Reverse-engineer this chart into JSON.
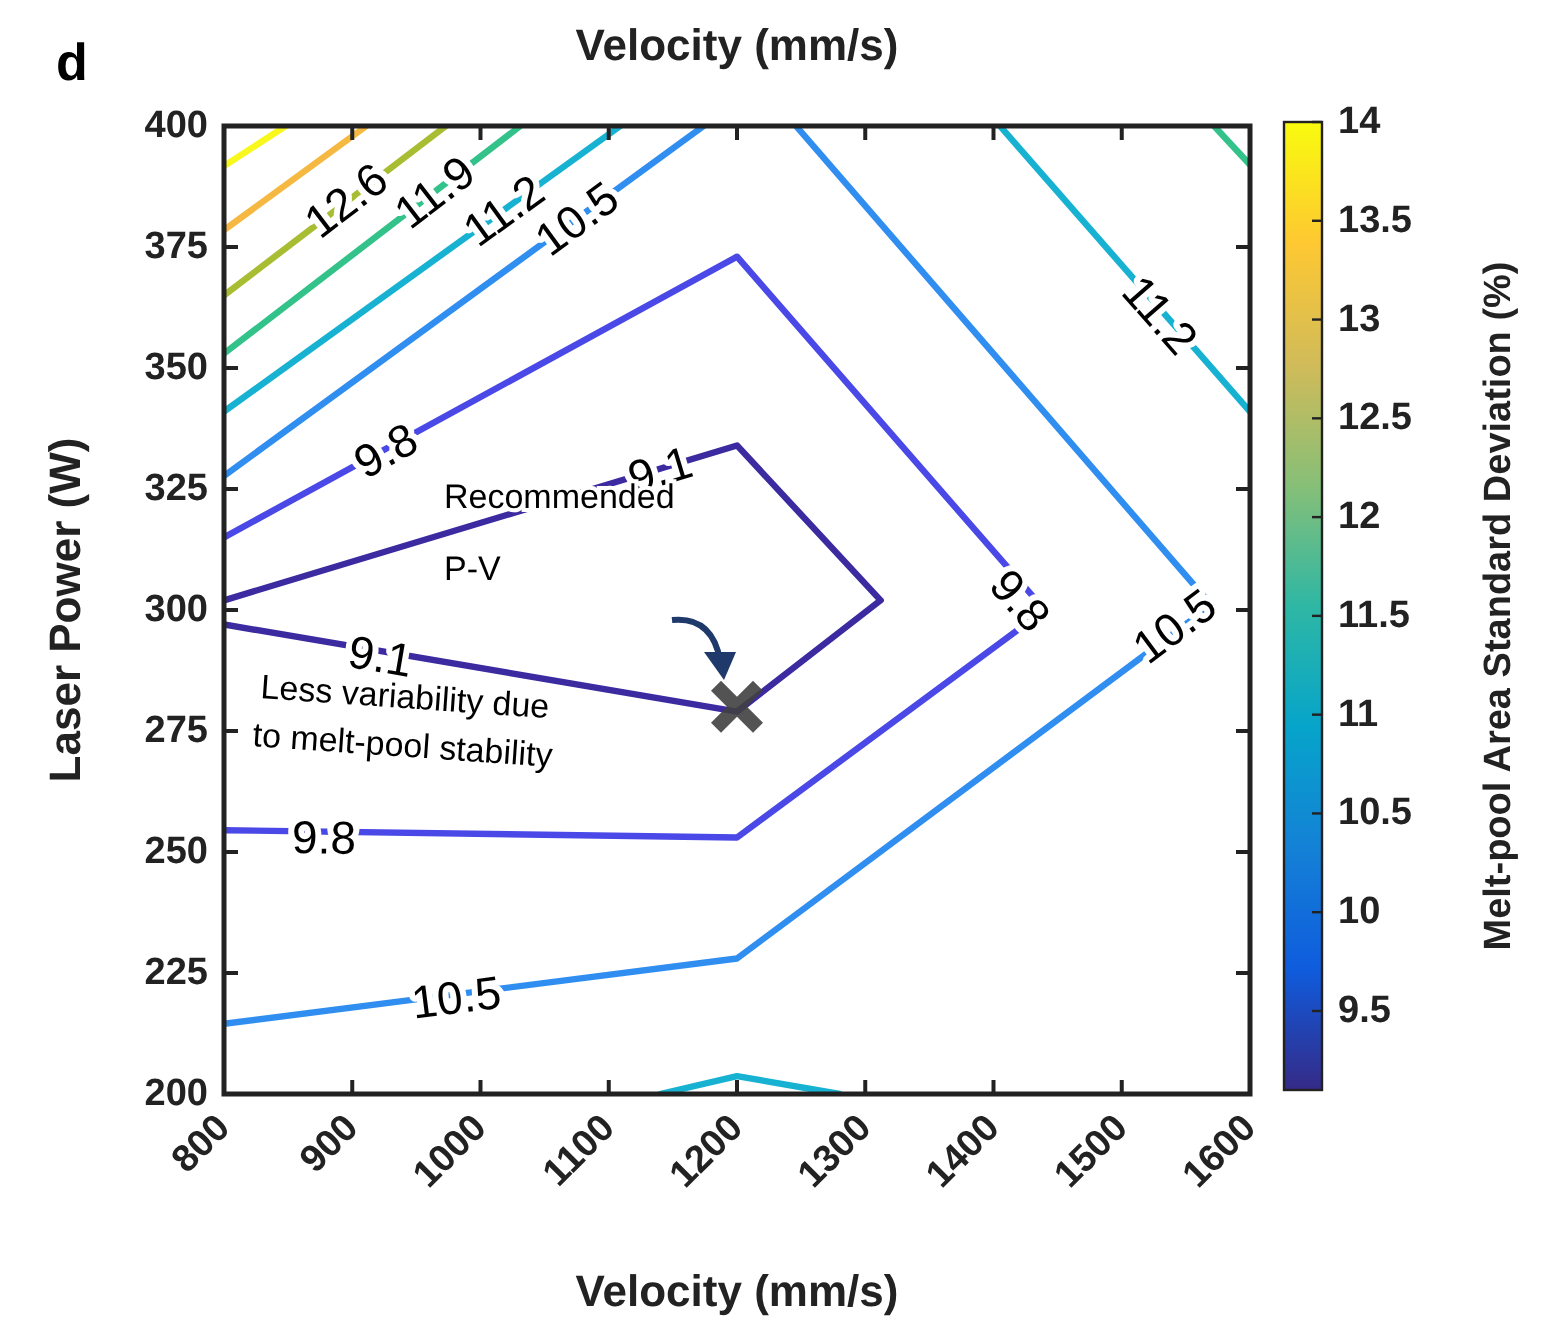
{
  "chart_data": {
    "type": "line",
    "xlabel": "Velocity (mm/s)",
    "x2label": "Velocity (mm/s)",
    "ylabel": "Laser Power (W)",
    "clabel": "Melt-pool Area Standard Deviation (%)",
    "xlim": [
      800,
      1600
    ],
    "xticks": [
      800,
      900,
      1000,
      1100,
      1200,
      1300,
      1400,
      1500,
      1600
    ],
    "ylim": [
      200,
      400
    ],
    "yticks": [
      200,
      225,
      250,
      275,
      300,
      325,
      350,
      375,
      400
    ],
    "clim": [
      9.1,
      14
    ],
    "cticks": [
      9.5,
      10,
      10.5,
      11,
      11.5,
      12,
      12.5,
      13,
      13.5,
      14
    ],
    "grid": false,
    "marker": "none",
    "line_style": "solid",
    "series": [
      {
        "color": "#3b2aa0",
        "x": [
          800,
          1200,
          1312,
          1200,
          800
        ],
        "values": [
          297,
          279,
          302,
          334,
          302
        ]
      },
      {
        "color": "#4a48e6",
        "x": [
          800,
          1200,
          1440,
          1200,
          800
        ],
        "values": [
          315,
          373,
          300,
          253,
          254.5
        ]
      },
      {
        "color": "#2f8ef0",
        "x": [
          800,
          1200,
          1570,
          1246
        ],
        "values": [
          214.5,
          228,
          301,
          400
        ]
      },
      {
        "color": "#2f8ef0",
        "x": [
          800,
          1174
        ],
        "values": [
          327.7,
          400
        ]
      },
      {
        "color": "#17b2d2",
        "x": [
          800,
          1109
        ],
        "values": [
          341,
          400
        ]
      },
      {
        "color": "#17b2d2",
        "x": [
          1405,
          1600
        ],
        "values": [
          400,
          341
        ]
      },
      {
        "color": "#17b2d2",
        "x": [
          1140,
          1200,
          1280
        ],
        "values": [
          200,
          203.7,
          200
        ]
      },
      {
        "color": "#33c28a",
        "x": [
          800,
          1031
        ],
        "values": [
          353,
          400
        ]
      },
      {
        "color": "#33c28a",
        "x": [
          1572,
          1600
        ],
        "values": [
          400,
          392
        ]
      },
      {
        "color": "#a8bd32",
        "x": [
          800,
          973
        ],
        "values": [
          365,
          400
        ]
      },
      {
        "color": "#f5b840",
        "x": [
          800,
          911
        ],
        "values": [
          378.5,
          400
        ]
      },
      {
        "color": "#f8f81c",
        "x": [
          800,
          848
        ],
        "values": [
          391.7,
          400
        ]
      },
      {
        "type": "scatter",
        "marker": "cross",
        "color": "#404040",
        "x": [
          1200
        ],
        "values": [
          280
        ]
      }
    ],
    "annotations": [
      {
        "text": "12.6",
        "x": 895,
        "y": 384.7
      },
      {
        "text": "11.9",
        "x": 964,
        "y": 386.4
      },
      {
        "text": "11.2",
        "x": 1018,
        "y": 382.6
      },
      {
        "text": "10.5",
        "x": 1075,
        "y": 380.9
      },
      {
        "text": "9.8",
        "x": 926,
        "y": 333
      },
      {
        "text": "9.1",
        "x": 1140,
        "y": 329
      },
      {
        "text": "9.1",
        "x": 922,
        "y": 290.5
      },
      {
        "text": "9.8",
        "x": 878,
        "y": 253
      },
      {
        "text": "10.5",
        "x": 981,
        "y": 220
      },
      {
        "text": "11.2",
        "x": 1530,
        "y": 361
      },
      {
        "text": "9.8",
        "x": 1421,
        "y": 302
      },
      {
        "text": "10.5",
        "x": 1541,
        "y": 296.7
      },
      "d",
      "Recommended",
      "P-V",
      "Less variability due",
      "to melt-pool stability"
    ]
  }
}
